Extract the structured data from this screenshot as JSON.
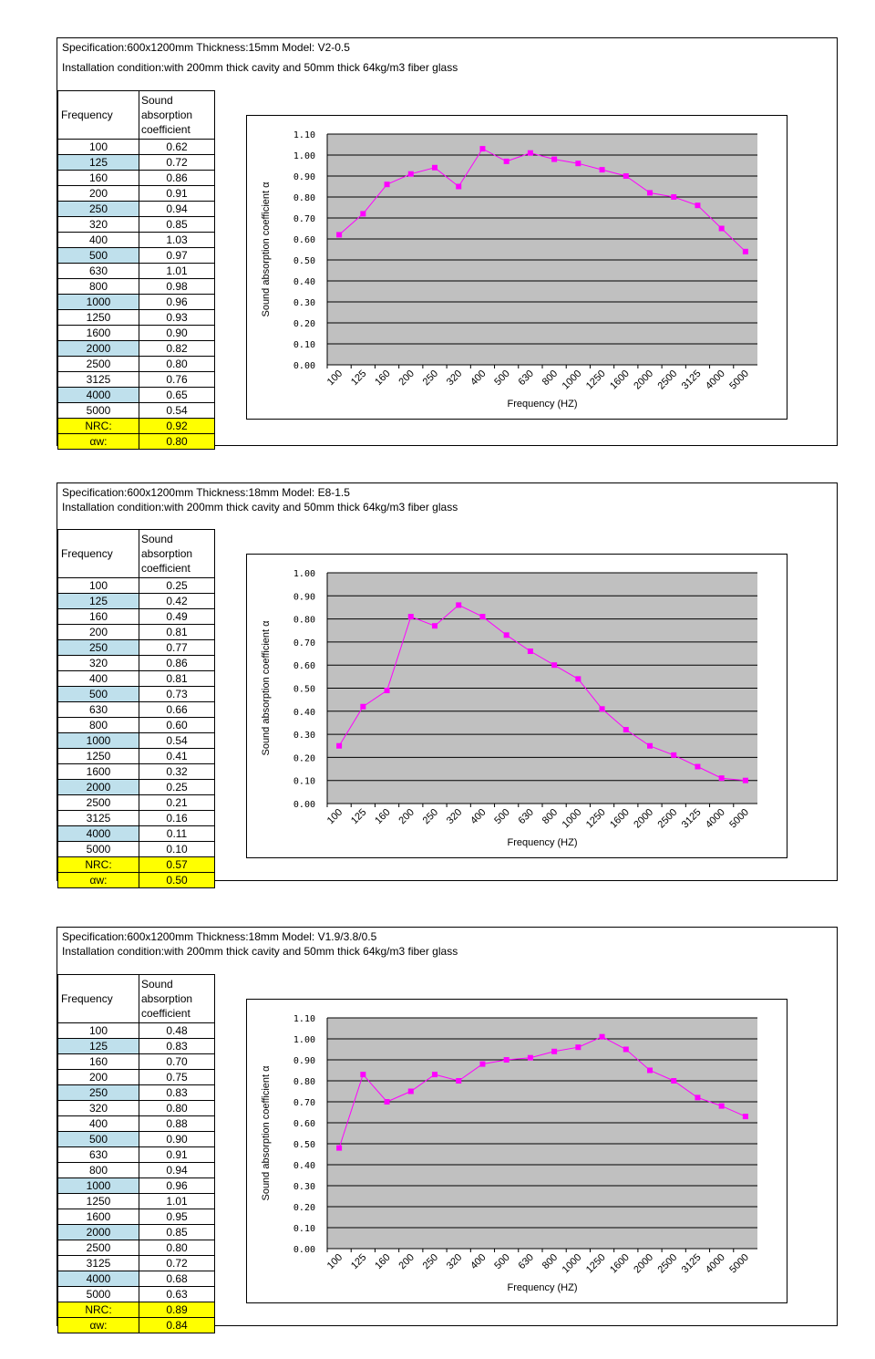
{
  "panels": [
    {
      "spec": "Specification:600x1200mm Thickness:15mm Model: V2-0.5",
      "install": "Installation condition:with 200mm thick cavity and 50mm thick 64kg/m3 fiber glass",
      "table": {
        "col1_header": "Frequency",
        "col2_header": [
          "Sound",
          "absorption",
          "coefficient"
        ],
        "rows": [
          {
            "f": "100",
            "v": "0.62"
          },
          {
            "f": "125",
            "v": "0.72"
          },
          {
            "f": "160",
            "v": "0.86"
          },
          {
            "f": "200",
            "v": "0.91"
          },
          {
            "f": "250",
            "v": "0.94"
          },
          {
            "f": "320",
            "v": "0.85"
          },
          {
            "f": "400",
            "v": "1.03"
          },
          {
            "f": "500",
            "v": "0.97"
          },
          {
            "f": "630",
            "v": "1.01"
          },
          {
            "f": "800",
            "v": "0.98"
          },
          {
            "f": "1000",
            "v": "0.96"
          },
          {
            "f": "1250",
            "v": "0.93"
          },
          {
            "f": "1600",
            "v": "0.90"
          },
          {
            "f": "2000",
            "v": "0.82"
          },
          {
            "f": "2500",
            "v": "0.80"
          },
          {
            "f": "3125",
            "v": "0.76"
          },
          {
            "f": "4000",
            "v": "0.65"
          },
          {
            "f": "5000",
            "v": "0.54"
          }
        ],
        "nrc_label": "NRC:",
        "nrc_value": "0.92",
        "aw_label": "αw:",
        "aw_value": "0.80"
      }
    },
    {
      "spec": "Specification:600x1200mm Thickness:18mm Model: E8-1.5",
      "install": "Installation condition:with 200mm thick cavity and 50mm thick 64kg/m3 fiber glass",
      "table": {
        "col1_header": "Frequency",
        "col2_header": [
          "Sound",
          "absorption",
          "coefficient"
        ],
        "rows": [
          {
            "f": "100",
            "v": "0.25"
          },
          {
            "f": "125",
            "v": "0.42"
          },
          {
            "f": "160",
            "v": "0.49"
          },
          {
            "f": "200",
            "v": "0.81"
          },
          {
            "f": "250",
            "v": "0.77"
          },
          {
            "f": "320",
            "v": "0.86"
          },
          {
            "f": "400",
            "v": "0.81"
          },
          {
            "f": "500",
            "v": "0.73"
          },
          {
            "f": "630",
            "v": "0.66"
          },
          {
            "f": "800",
            "v": "0.60"
          },
          {
            "f": "1000",
            "v": "0.54"
          },
          {
            "f": "1250",
            "v": "0.41"
          },
          {
            "f": "1600",
            "v": "0.32"
          },
          {
            "f": "2000",
            "v": "0.25"
          },
          {
            "f": "2500",
            "v": "0.21"
          },
          {
            "f": "3125",
            "v": "0.16"
          },
          {
            "f": "4000",
            "v": "0.11"
          },
          {
            "f": "5000",
            "v": "0.10"
          }
        ],
        "nrc_label": "NRC:",
        "nrc_value": "0.57",
        "aw_label": "αw:",
        "aw_value": "0.50"
      }
    },
    {
      "spec": "Specification:600x1200mm Thickness:18mm Model: V1.9/3.8/0.5",
      "install": "Installation condition:with 200mm thick cavity and 50mm thick 64kg/m3 fiber glass",
      "table": {
        "col1_header": "Frequency",
        "col2_header": [
          "Sound",
          "absorption",
          "coefficient"
        ],
        "rows": [
          {
            "f": "100",
            "v": "0.48"
          },
          {
            "f": "125",
            "v": "0.83"
          },
          {
            "f": "160",
            "v": "0.70"
          },
          {
            "f": "200",
            "v": "0.75"
          },
          {
            "f": "250",
            "v": "0.83"
          },
          {
            "f": "320",
            "v": "0.80"
          },
          {
            "f": "400",
            "v": "0.88"
          },
          {
            "f": "500",
            "v": "0.90"
          },
          {
            "f": "630",
            "v": "0.91"
          },
          {
            "f": "800",
            "v": "0.94"
          },
          {
            "f": "1000",
            "v": "0.96"
          },
          {
            "f": "1250",
            "v": "1.01"
          },
          {
            "f": "1600",
            "v": "0.95"
          },
          {
            "f": "2000",
            "v": "0.85"
          },
          {
            "f": "2500",
            "v": "0.80"
          },
          {
            "f": "3125",
            "v": "0.72"
          },
          {
            "f": "4000",
            "v": "0.68"
          },
          {
            "f": "5000",
            "v": "0.63"
          }
        ],
        "nrc_label": "NRC:",
        "nrc_value": "0.89",
        "aw_label": "αw:",
        "aw_value": "0.84"
      }
    }
  ],
  "chart_data": [
    {
      "type": "line",
      "categories": [
        "100",
        "125",
        "160",
        "200",
        "250",
        "320",
        "400",
        "500",
        "630",
        "800",
        "1000",
        "1250",
        "1600",
        "2000",
        "2500",
        "3125",
        "4000",
        "5000"
      ],
      "series": [
        {
          "values": [
            0.62,
            0.72,
            0.86,
            0.91,
            0.94,
            0.85,
            1.03,
            0.97,
            1.01,
            0.98,
            0.96,
            0.93,
            0.9,
            0.82,
            0.8,
            0.76,
            0.65,
            0.54
          ]
        }
      ],
      "xlabel": "Frequency (HZ)",
      "ylabel": "Sound absorption coefficient α",
      "ylim": [
        0,
        1.1
      ],
      "yticks": [
        "0.00",
        "0.10",
        "0.20",
        "0.30",
        "0.40",
        "0.50",
        "0.60",
        "0.70",
        "0.80",
        "0.90",
        "1.00",
        "1.10"
      ],
      "grid": true,
      "plot_bg": "#c0c0c0",
      "line_color": "#ff00ff"
    },
    {
      "type": "line",
      "categories": [
        "100",
        "125",
        "160",
        "200",
        "250",
        "320",
        "400",
        "500",
        "630",
        "800",
        "1000",
        "1250",
        "1600",
        "2000",
        "2500",
        "3125",
        "4000",
        "5000"
      ],
      "series": [
        {
          "values": [
            0.25,
            0.42,
            0.49,
            0.81,
            0.77,
            0.86,
            0.81,
            0.73,
            0.66,
            0.6,
            0.54,
            0.41,
            0.32,
            0.25,
            0.21,
            0.16,
            0.11,
            0.1
          ]
        }
      ],
      "xlabel": "Frequency (HZ)",
      "ylabel": "Sound absorption coefficient α",
      "ylim": [
        0,
        1.0
      ],
      "yticks": [
        "0.00",
        "0.10",
        "0.20",
        "0.30",
        "0.40",
        "0.50",
        "0.60",
        "0.70",
        "0.80",
        "0.90",
        "1.00"
      ],
      "grid": true,
      "plot_bg": "#c0c0c0",
      "line_color": "#ff00ff"
    },
    {
      "type": "line",
      "categories": [
        "100",
        "125",
        "160",
        "200",
        "250",
        "320",
        "400",
        "500",
        "630",
        "800",
        "1000",
        "1250",
        "1600",
        "2000",
        "2500",
        "3125",
        "4000",
        "5000"
      ],
      "series": [
        {
          "values": [
            0.48,
            0.83,
            0.7,
            0.75,
            0.83,
            0.8,
            0.88,
            0.9,
            0.91,
            0.94,
            0.96,
            1.01,
            0.95,
            0.85,
            0.8,
            0.72,
            0.68,
            0.63
          ]
        }
      ],
      "xlabel": "Frequency (HZ)",
      "ylabel": "Sound absorption coefficient α",
      "ylim": [
        0,
        1.1
      ],
      "yticks": [
        "0.00",
        "0.10",
        "0.20",
        "0.30",
        "0.40",
        "0.50",
        "0.60",
        "0.70",
        "0.80",
        "0.90",
        "1.00",
        "1.10"
      ],
      "grid": true,
      "plot_bg": "#c0c0c0",
      "line_color": "#ff00ff"
    }
  ]
}
